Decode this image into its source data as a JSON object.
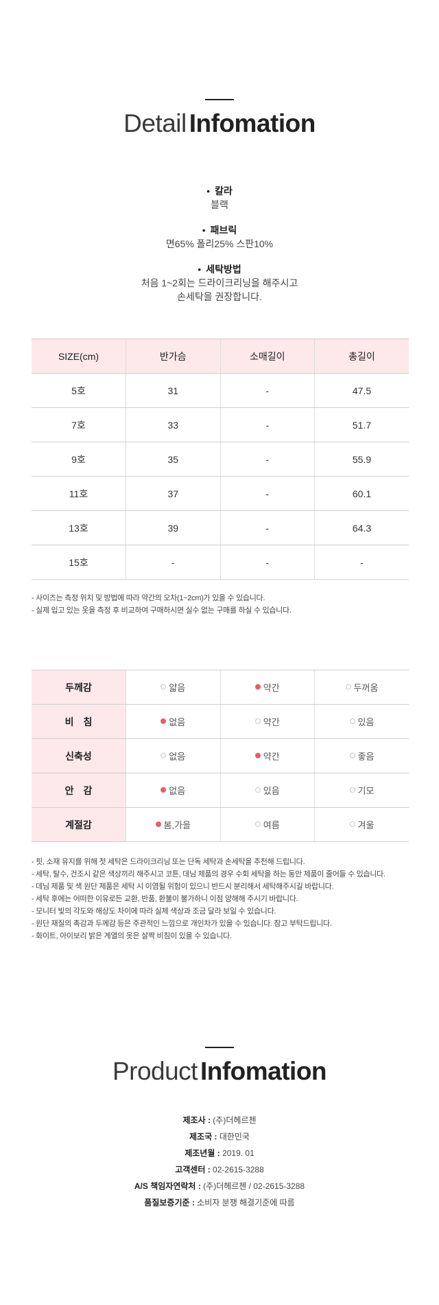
{
  "detail_header": {
    "title_light": "Detail",
    "title_bold": "Infomation"
  },
  "spec": [
    {
      "label": "칼라",
      "value": "블랙"
    },
    {
      "label": "패브릭",
      "value": "면65% 폴리25% 스판10%"
    },
    {
      "label": "세탁방법",
      "value": "처음 1~2회는 드라이크리닝을 해주시고\n손세탁을 권장합니다."
    }
  ],
  "size_table": {
    "headers": [
      "SIZE(cm)",
      "반가슴",
      "소매길이",
      "총길이"
    ],
    "rows": [
      [
        "5호",
        "31",
        "-",
        "47.5"
      ],
      [
        "7호",
        "33",
        "-",
        "51.7"
      ],
      [
        "9호",
        "35",
        "-",
        "55.9"
      ],
      [
        "11호",
        "37",
        "-",
        "60.1"
      ],
      [
        "13호",
        "39",
        "-",
        "64.3"
      ],
      [
        "15호",
        "-",
        "-",
        "-"
      ]
    ]
  },
  "size_notes": [
    "- 사이즈는 측정 위치 및 방법에 따라 약간의 오차(1~2cm)가 있을 수 있습니다.",
    "- 실제 입고 있는 옷을 측정 후 비교하여 구매하시면 실수 없는 구매를 하실 수 있습니다."
  ],
  "feel_table": [
    {
      "label": "두께감",
      "options": [
        "얇음",
        "약간",
        "두꺼움"
      ],
      "selected": 1
    },
    {
      "label": "비　침",
      "options": [
        "없음",
        "약간",
        "있음"
      ],
      "selected": 0
    },
    {
      "label": "신축성",
      "options": [
        "없음",
        "약간",
        "좋음"
      ],
      "selected": 1
    },
    {
      "label": "안　감",
      "options": [
        "없음",
        "있음",
        "기모"
      ],
      "selected": 0
    },
    {
      "label": "계절감",
      "options": [
        "봄,가을",
        "여름",
        "겨울"
      ],
      "selected": 0
    }
  ],
  "care_notes": [
    "- 핏, 소재 유지를 위해 첫 세탁은 드라이크리닝 또는 단독 세탁과 손세탁을 추천해 드립니다.",
    "- 세탁, 탈수, 건조시 같은 색상끼리 해주시고 코튼, 데님 제품의 경우 수회 세탁을 하는 동안 제품이 줄어들 수 있습니다.",
    "- 데님 제품 및 색 원단 제품은 세탁 시 이염될 위험이 있으니 반드시 분리해서 세탁해주시길 바랍니다.",
    "- 세탁 후에는 어떠한 이유로든 교환, 반품, 환불이 불가하니 이점 양해해 주시기 바랍니다.",
    "- 모니터 빛의 각도와 해상도 차이에 따라 실제 색상과 조금 달라 보일 수 있습니다.",
    "- 원단 재질의 촉감과 두께감 등은 주관적인 느낌으로 개인차가 있을 수 있습니다. 참고 부탁드립니다.",
    "- 화이트, 아이보리 밝은 계열의 옷은 살짝 비침이 있을 수 있습니다."
  ],
  "product_header": {
    "title_light": "Product",
    "title_bold": "Infomation"
  },
  "product_info": [
    {
      "key": "제조사",
      "value": "(주)더헤르첸"
    },
    {
      "key": "제조국",
      "value": "대한민국"
    },
    {
      "key": "제조년월",
      "value": "2019. 01"
    },
    {
      "key": "고객센터",
      "value": "02-2615-3288"
    },
    {
      "key": "A/S 책임자연락처",
      "value": "(주)더헤르첸 / 02-2615-3288"
    },
    {
      "key": "품질보증기준",
      "value": "소비자 분쟁 해결기준에 따름"
    }
  ],
  "colors": {
    "accent": "#ef5a67",
    "header_bg": "#fde8ea"
  }
}
